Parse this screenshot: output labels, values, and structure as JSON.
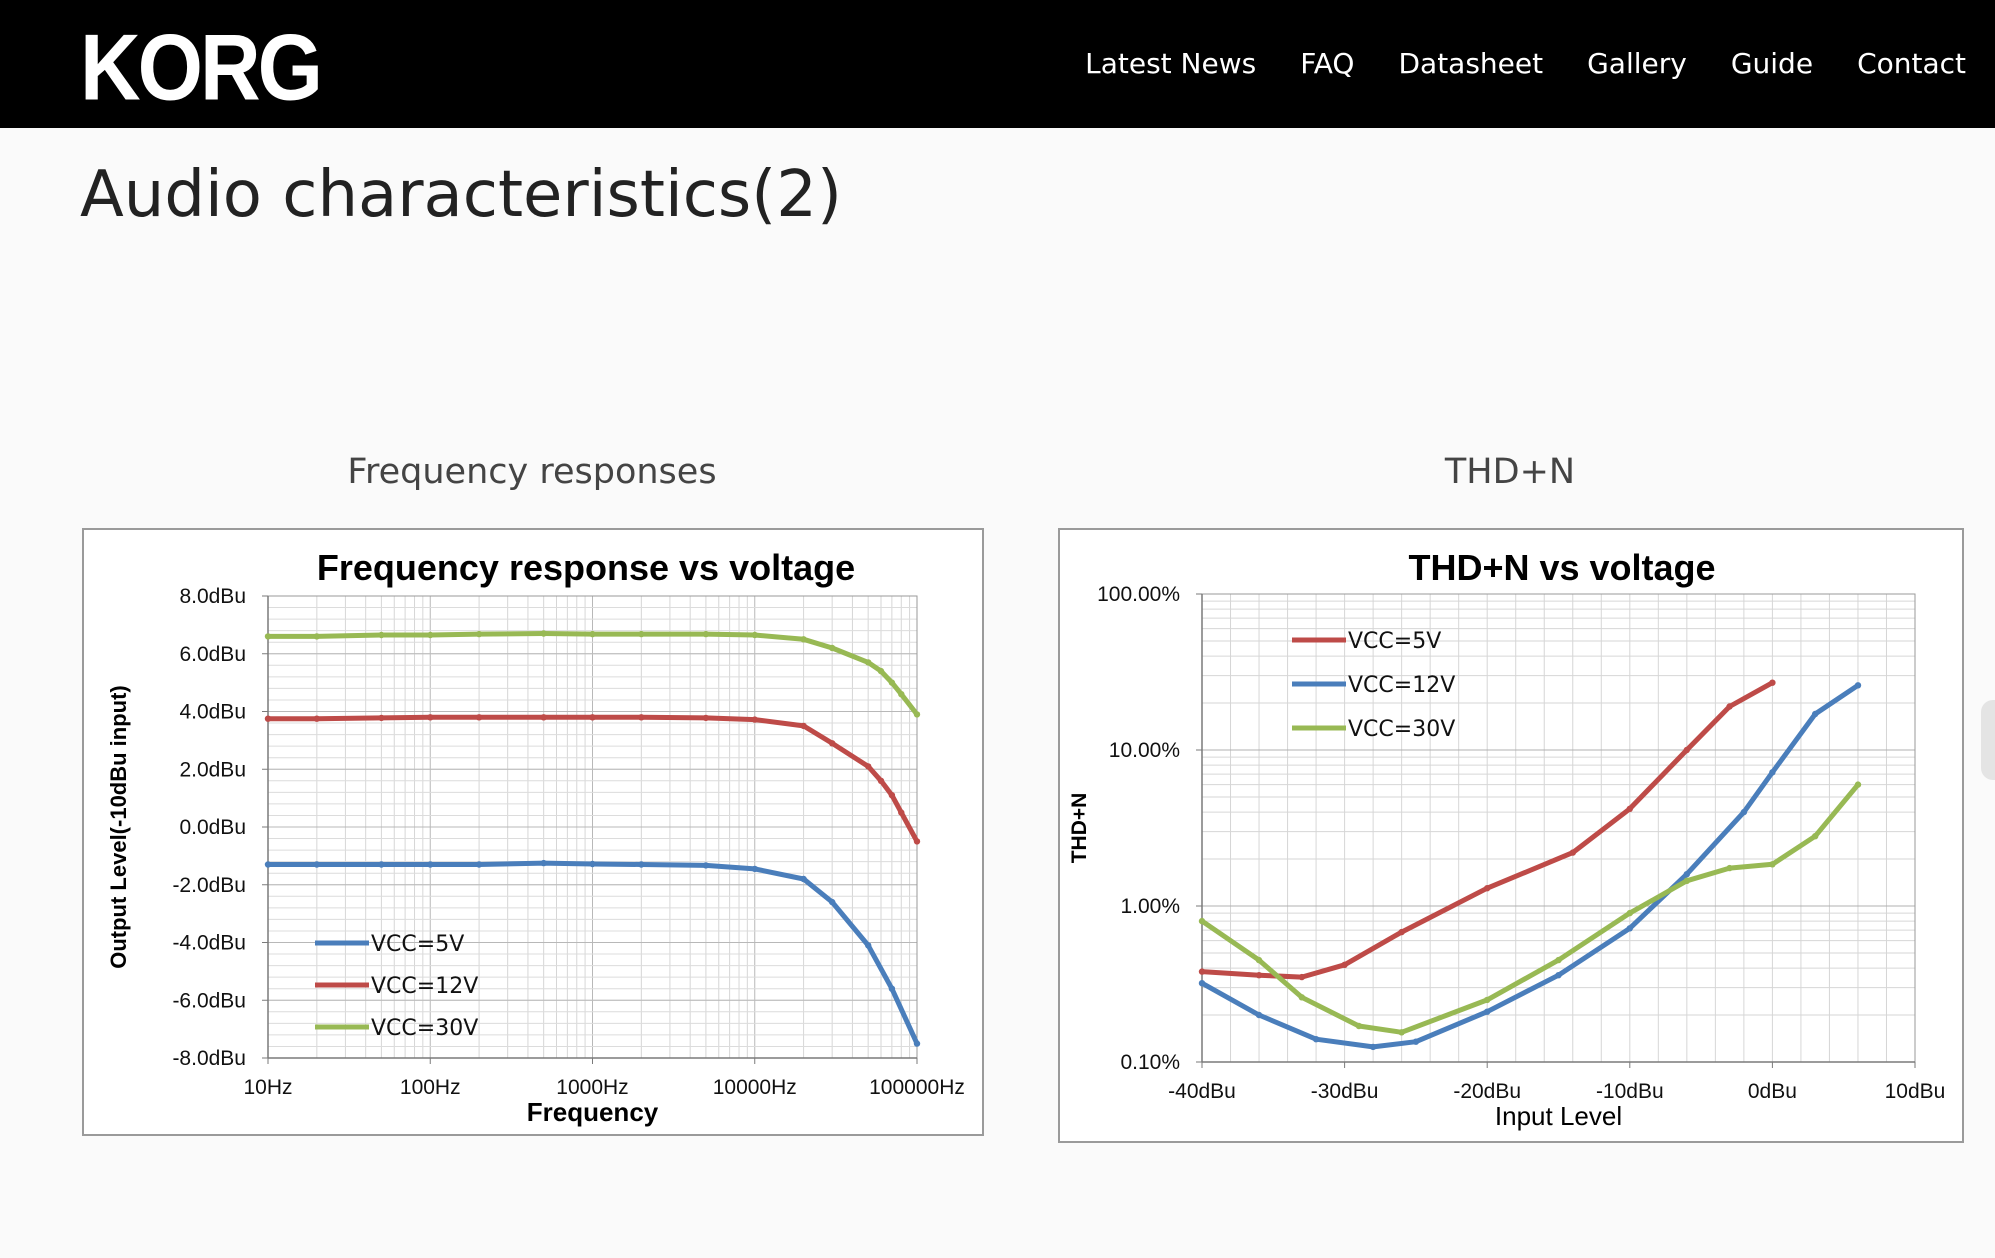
{
  "logo": "KORG",
  "nav": [
    "Latest News",
    "FAQ",
    "Datasheet",
    "Gallery",
    "Guide",
    "Contact"
  ],
  "page_title": "Audio characteristics(2)",
  "sections": {
    "freq": "Frequency responses",
    "thd": "THD+N"
  },
  "colors": {
    "vcc5": "#4a7ebb",
    "vcc12": "#be4b48",
    "vcc30": "#98b954"
  },
  "chart_data": [
    {
      "type": "line",
      "title": "Frequency response vs voltage",
      "xlabel": "Frequency",
      "ylabel": "Output Level(-10dBu input)",
      "xscale": "log",
      "xlim": [
        10,
        100000
      ],
      "ylim": [
        -8,
        8
      ],
      "xticks": [
        "10Hz",
        "100Hz",
        "1000Hz",
        "10000Hz",
        "100000Hz"
      ],
      "yticks": [
        "8.0dBu",
        "6.0dBu",
        "4.0dBu",
        "2.0dBu",
        "0.0dBu",
        "-2.0dBu",
        "-4.0dBu",
        "-6.0dBu",
        "-8.0dBu"
      ],
      "grid": true,
      "legend": "bottom-left",
      "series": [
        {
          "name": "VCC=5V",
          "color": "#4a7ebb",
          "x": [
            10,
            20,
            50,
            100,
            200,
            500,
            1000,
            2000,
            5000,
            10000,
            20000,
            30000,
            50000,
            70000,
            100000
          ],
          "y": [
            -1.3,
            -1.3,
            -1.3,
            -1.3,
            -1.3,
            -1.25,
            -1.28,
            -1.3,
            -1.33,
            -1.45,
            -1.8,
            -2.6,
            -4.1,
            -5.6,
            -7.5
          ]
        },
        {
          "name": "VCC=12V",
          "color": "#be4b48",
          "x": [
            10,
            20,
            50,
            100,
            200,
            500,
            1000,
            2000,
            5000,
            10000,
            20000,
            30000,
            50000,
            60000,
            70000,
            80000,
            100000
          ],
          "y": [
            3.75,
            3.75,
            3.78,
            3.8,
            3.8,
            3.8,
            3.8,
            3.8,
            3.78,
            3.72,
            3.5,
            2.9,
            2.1,
            1.6,
            1.1,
            0.5,
            -0.5
          ]
        },
        {
          "name": "VCC=30V",
          "color": "#98b954",
          "x": [
            10,
            20,
            50,
            100,
            200,
            500,
            1000,
            2000,
            5000,
            10000,
            20000,
            30000,
            50000,
            60000,
            70000,
            80000,
            100000
          ],
          "y": [
            6.6,
            6.6,
            6.65,
            6.65,
            6.68,
            6.7,
            6.68,
            6.68,
            6.68,
            6.65,
            6.5,
            6.2,
            5.7,
            5.4,
            5.0,
            4.6,
            3.9
          ]
        }
      ]
    },
    {
      "type": "line",
      "title": "THD+N vs voltage",
      "xlabel": "Input Level",
      "ylabel": "THD+N",
      "yscale": "log",
      "xlim": [
        -40,
        10
      ],
      "ylim": [
        0.1,
        100
      ],
      "xticks": [
        "-40dBu",
        "-30dBu",
        "-20dBu",
        "-10dBu",
        "0dBu",
        "10dBu"
      ],
      "yticks": [
        "100.00%",
        "10.00%",
        "1.00%",
        "0.10%"
      ],
      "grid": true,
      "legend": "top-left",
      "series": [
        {
          "name": "VCC=5V",
          "color": "#be4b48",
          "x": [
            -40,
            -36,
            -33,
            -30,
            -26,
            -20,
            -14,
            -10,
            -6,
            -3,
            0
          ],
          "y": [
            0.38,
            0.36,
            0.35,
            0.42,
            0.68,
            1.3,
            2.2,
            4.2,
            10,
            19,
            27
          ]
        },
        {
          "name": "VCC=12V",
          "color": "#4a7ebb",
          "x": [
            -40,
            -36,
            -32,
            -28,
            -25,
            -20,
            -15,
            -10,
            -6,
            -2,
            0,
            3,
            6
          ],
          "y": [
            0.32,
            0.2,
            0.14,
            0.125,
            0.135,
            0.21,
            0.36,
            0.72,
            1.6,
            4.0,
            7.2,
            17,
            26
          ]
        },
        {
          "name": "VCC=30V",
          "color": "#98b954",
          "x": [
            -40,
            -36,
            -33,
            -29,
            -26,
            -20,
            -15,
            -10,
            -6,
            -3,
            0,
            3,
            6
          ],
          "y": [
            0.8,
            0.45,
            0.26,
            0.17,
            0.155,
            0.25,
            0.45,
            0.9,
            1.45,
            1.75,
            1.85,
            2.8,
            6
          ]
        }
      ]
    }
  ]
}
